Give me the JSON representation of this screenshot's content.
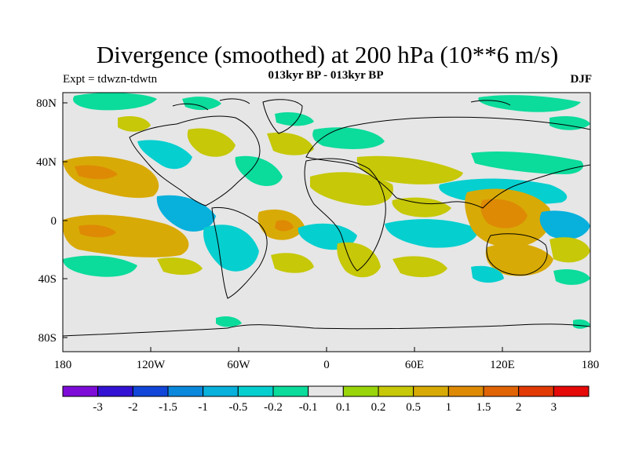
{
  "title": "Divergence (smoothed) at 200 hPa (10**6 m/s)",
  "subtitle": "013kyr BP - 013kyr BP",
  "experiment": "Expt = tdwzn-tdwtn",
  "season": "DJF",
  "axes": {
    "lat_ticks": [
      "80N",
      "40N",
      "0",
      "40S",
      "80S"
    ],
    "lon_ticks": [
      "180",
      "120W",
      "60W",
      "0",
      "60E",
      "120E",
      "180"
    ]
  },
  "legend": {
    "colors": [
      "#7d0cd9",
      "#3312d4",
      "#1146d8",
      "#0a88dc",
      "#08b0dc",
      "#06cfcf",
      "#0bdb9b",
      "#e6e6e6",
      "#99d50a",
      "#c6c808",
      "#d8aa06",
      "#de8a05",
      "#e16404",
      "#e23a04",
      "#e50908"
    ],
    "labels": [
      "-3",
      "-2",
      "-1.5",
      "-1",
      "-0.5",
      "-0.2",
      "-0.1",
      "0.1",
      "0.2",
      "0.5",
      "1",
      "1.5",
      "2",
      "3"
    ]
  },
  "colors": {
    "neutral": "#e6e6e6",
    "weak_convergence": "#0bdb9b",
    "convergence": "#06cfcf",
    "strong_convergence": "#08b0dc",
    "weak_divergence": "#c6c808",
    "divergence": "#d8aa06",
    "strong_divergence": "#de8a05",
    "coastline": "#000000"
  }
}
